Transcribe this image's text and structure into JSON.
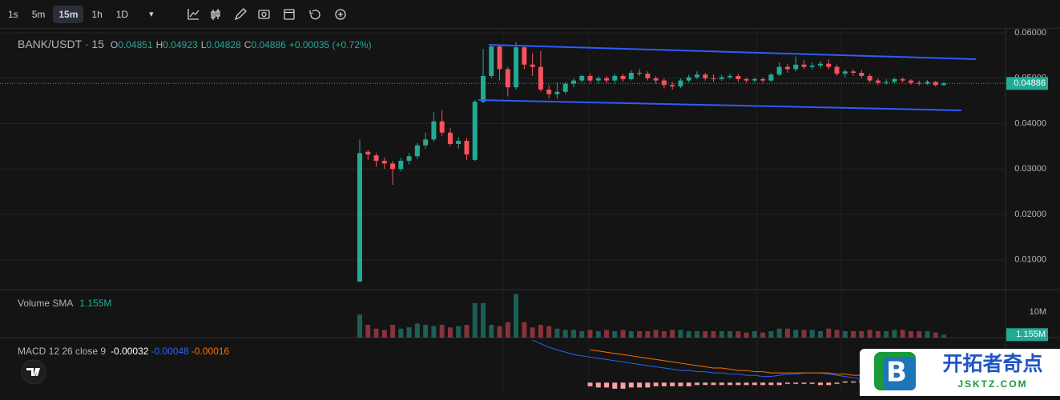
{
  "toolbar": {
    "intervals": [
      "1s",
      "5m",
      "15m",
      "1h",
      "1D"
    ],
    "active_index": 2,
    "more": "▾"
  },
  "watermark": {
    "logo_letter": "B",
    "title": "开拓者奇点",
    "url": "JSKTZ.COM"
  },
  "chart_data": [
    {
      "type": "candlestick",
      "title": "BANK/USDT · 15",
      "ohlc": [
        {
          "key": "O",
          "value": 0.04851
        },
        {
          "key": "H",
          "value": 0.04923
        },
        {
          "key": "L",
          "value": 0.04828
        },
        {
          "key": "C",
          "value": 0.04886
        }
      ],
      "change": "+0.00035 (+0.72%)",
      "last_price_label": "0.04886",
      "up_color": "#22ab94",
      "down_color": "#f7525f",
      "grid": true,
      "ylim": [
        0.0034,
        0.0609
      ],
      "yticks": [
        {
          "value": 0.01,
          "label": "0.01000"
        },
        {
          "value": 0.02,
          "label": "0.02000"
        },
        {
          "value": 0.03,
          "label": "0.03000"
        },
        {
          "value": 0.04,
          "label": "0.04000"
        },
        {
          "value": 0.05,
          "label": "0.05000"
        },
        {
          "value": 0.06,
          "label": "0.06000"
        }
      ],
      "open": [
        0.0052,
        0.0338,
        0.033,
        0.0318,
        0.0312,
        0.03,
        0.0318,
        0.0328,
        0.0352,
        0.0365,
        0.0405,
        0.038,
        0.0355,
        0.0362,
        0.032,
        0.0448,
        0.0505,
        0.057,
        0.052,
        0.048,
        0.0568,
        0.053,
        0.0525,
        0.0475,
        0.0465,
        0.047,
        0.0488,
        0.0495,
        0.0505,
        0.0495,
        0.05,
        0.0495,
        0.0505,
        0.0498,
        0.0512,
        0.051,
        0.05,
        0.0495,
        0.0485,
        0.0482,
        0.0495,
        0.0502,
        0.0508,
        0.05,
        0.0498,
        0.0502,
        0.0505,
        0.0498,
        0.0495,
        0.0498,
        0.0495,
        0.0508,
        0.0525,
        0.052,
        0.053,
        0.0525,
        0.0528,
        0.0532,
        0.0525,
        0.051,
        0.0515,
        0.0512,
        0.0505,
        0.0495,
        0.049,
        0.0492,
        0.0498,
        0.0495,
        0.049,
        0.0488,
        0.0492,
        0.04851
      ],
      "high": [
        0.0365,
        0.0342,
        0.0335,
        0.0325,
        0.0318,
        0.0325,
        0.0335,
        0.0358,
        0.038,
        0.0425,
        0.043,
        0.039,
        0.037,
        0.0368,
        0.0452,
        0.0565,
        0.0575,
        0.0572,
        0.0525,
        0.058,
        0.057,
        0.0555,
        0.056,
        0.0485,
        0.049,
        0.0492,
        0.05,
        0.0508,
        0.051,
        0.0505,
        0.0505,
        0.051,
        0.051,
        0.0518,
        0.052,
        0.0515,
        0.0505,
        0.05,
        0.0492,
        0.05,
        0.0508,
        0.0515,
        0.0512,
        0.0508,
        0.0508,
        0.051,
        0.051,
        0.0502,
        0.0502,
        0.0502,
        0.0512,
        0.0535,
        0.0532,
        0.0548,
        0.054,
        0.0535,
        0.0538,
        0.0542,
        0.053,
        0.052,
        0.052,
        0.0518,
        0.051,
        0.05,
        0.0498,
        0.0502,
        0.0502,
        0.0498,
        0.0495,
        0.0496,
        0.0494,
        0.04923
      ],
      "low": [
        0.005,
        0.032,
        0.0305,
        0.03,
        0.0265,
        0.0295,
        0.031,
        0.0322,
        0.0345,
        0.036,
        0.0372,
        0.035,
        0.0345,
        0.032,
        0.0318,
        0.0445,
        0.05,
        0.0495,
        0.046,
        0.0475,
        0.052,
        0.0505,
        0.047,
        0.0455,
        0.0455,
        0.0465,
        0.048,
        0.049,
        0.049,
        0.0488,
        0.0488,
        0.049,
        0.0492,
        0.0495,
        0.0505,
        0.0495,
        0.0488,
        0.0478,
        0.0475,
        0.0478,
        0.049,
        0.0498,
        0.0495,
        0.0492,
        0.0494,
        0.0498,
        0.0492,
        0.049,
        0.049,
        0.049,
        0.0492,
        0.0505,
        0.0512,
        0.0515,
        0.052,
        0.052,
        0.0522,
        0.052,
        0.0505,
        0.0502,
        0.0505,
        0.05,
        0.049,
        0.0485,
        0.0486,
        0.0488,
        0.049,
        0.0486,
        0.0484,
        0.0485,
        0.0482,
        0.04828
      ],
      "close": [
        0.0335,
        0.0332,
        0.0318,
        0.0312,
        0.03,
        0.0318,
        0.0328,
        0.0352,
        0.0365,
        0.0405,
        0.038,
        0.0355,
        0.0362,
        0.0332,
        0.0448,
        0.0505,
        0.057,
        0.052,
        0.048,
        0.0568,
        0.053,
        0.0525,
        0.0475,
        0.0465,
        0.047,
        0.0488,
        0.0495,
        0.0505,
        0.0495,
        0.05,
        0.0495,
        0.0505,
        0.0498,
        0.0512,
        0.051,
        0.05,
        0.0495,
        0.0485,
        0.0482,
        0.0495,
        0.0502,
        0.0508,
        0.05,
        0.0498,
        0.0502,
        0.0505,
        0.0498,
        0.0495,
        0.0498,
        0.0495,
        0.0508,
        0.0525,
        0.052,
        0.053,
        0.0525,
        0.0528,
        0.0532,
        0.0525,
        0.051,
        0.0515,
        0.0512,
        0.0505,
        0.0495,
        0.049,
        0.0492,
        0.0498,
        0.0495,
        0.049,
        0.0488,
        0.0492,
        0.0485,
        0.04886
      ]
    },
    {
      "type": "bar",
      "title": "Volume SMA",
      "last_label": "1.155M",
      "ylim": [
        0,
        18.75
      ],
      "yticks": [
        {
          "value": 10,
          "label": "10M"
        }
      ],
      "values": [
        9,
        5,
        3.5,
        3,
        5,
        3.5,
        4,
        5.5,
        5,
        4.5,
        5,
        4,
        4.5,
        5,
        13.5,
        13.5,
        5,
        4.5,
        6,
        17,
        6,
        4,
        5,
        4.5,
        3.5,
        3,
        3,
        2.5,
        3,
        2.5,
        3,
        2.5,
        3,
        2.5,
        2.5,
        2.5,
        3,
        2.5,
        3,
        3,
        2.5,
        2.5,
        2.5,
        2.5,
        2.5,
        2.5,
        2.5,
        2,
        2.5,
        2,
        2.5,
        3.5,
        3.5,
        3,
        3,
        3,
        2.5,
        3.5,
        3,
        2.5,
        2.5,
        2.5,
        3,
        2.5,
        2.5,
        3,
        3,
        2.5,
        2.5,
        2.5,
        2,
        1.155
      ]
    },
    {
      "type": "line",
      "title": "MACD 12 26 close 9",
      "ylim": [
        -0.0011,
        0.0037
      ],
      "series": [
        {
          "type": "bar",
          "color": "#faa1a4",
          "last_label": "-0.00032",
          "values": [
            null,
            null,
            null,
            null,
            null,
            null,
            null,
            null,
            null,
            null,
            null,
            null,
            null,
            null,
            null,
            null,
            null,
            null,
            null,
            null,
            null,
            null,
            null,
            null,
            null,
            null,
            null,
            null,
            -0.0003,
            -0.0004,
            -0.0004,
            -0.0005,
            -0.0005,
            -0.0004,
            -0.0004,
            -0.0004,
            -0.0003,
            -0.0003,
            -0.0003,
            -0.0003,
            -0.0003,
            -0.0002,
            -0.0002,
            -0.0002,
            -0.0002,
            -0.0002,
            -0.0002,
            -0.0002,
            -0.0002,
            -0.0002,
            -0.0002,
            -0.0002,
            -0.0001,
            -0.0001,
            -0.0001,
            -0.0001,
            -0.0002,
            -0.0002,
            -0.0001,
            0.0001,
            0.0001,
            0.0002,
            0.0002,
            0.0002,
            0.0001,
            -0.0001,
            -0.0002,
            -0.0002,
            -0.0002,
            -0.0003,
            -0.0003,
            -0.00032
          ]
        },
        {
          "type": "line",
          "color": "#2962ff",
          "last_label": "-0.00048",
          "values": [
            null,
            null,
            null,
            null,
            null,
            null,
            null,
            null,
            null,
            null,
            null,
            null,
            null,
            null,
            null,
            null,
            null,
            null,
            null,
            null,
            null,
            0.0035,
            0.0032,
            0.0029,
            0.0027,
            0.0025,
            0.0023,
            0.0022,
            0.0021,
            0.002,
            0.0019,
            0.0018,
            0.0017,
            0.0016,
            0.0015,
            0.0014,
            0.0013,
            0.0012,
            0.0011,
            0.001,
            0.001,
            0.0009,
            0.0009,
            0.0008,
            0.0008,
            0.0007,
            0.0007,
            0.0006,
            0.0006,
            0.0005,
            0.0005,
            0.0006,
            0.0007,
            0.0007,
            0.0008,
            0.0008,
            0.0008,
            0.0007,
            0.0006,
            0.0005,
            0.0004,
            0.0003,
            0.0002,
            0.0001,
            0,
            -0.0001,
            -0.0001,
            -0.0002,
            -0.0002,
            -0.0003,
            -0.0004,
            -0.00048
          ]
        },
        {
          "type": "line",
          "color": "#ff6d00",
          "last_label": "-0.00016",
          "values": [
            null,
            null,
            null,
            null,
            null,
            null,
            null,
            null,
            null,
            null,
            null,
            null,
            null,
            null,
            null,
            null,
            null,
            null,
            null,
            null,
            null,
            null,
            null,
            null,
            null,
            null,
            null,
            null,
            0.0027,
            0.0026,
            0.0025,
            0.0024,
            0.0023,
            0.0022,
            0.0021,
            0.002,
            0.0019,
            0.0018,
            0.0017,
            0.0016,
            0.0015,
            0.0014,
            0.0013,
            0.0012,
            0.0012,
            0.0011,
            0.001,
            0.001,
            0.0009,
            0.0009,
            0.0008,
            0.0008,
            0.0008,
            0.0008,
            0.0008,
            0.0008,
            0.0008,
            0.0008,
            0.0007,
            0.0007,
            0.0006,
            0.0006,
            0.0005,
            0.0004,
            0.0003,
            0.0002,
            0.0001,
            0.0001,
            0,
            -0.0001,
            -0.00012,
            -0.00016
          ]
        }
      ]
    }
  ]
}
